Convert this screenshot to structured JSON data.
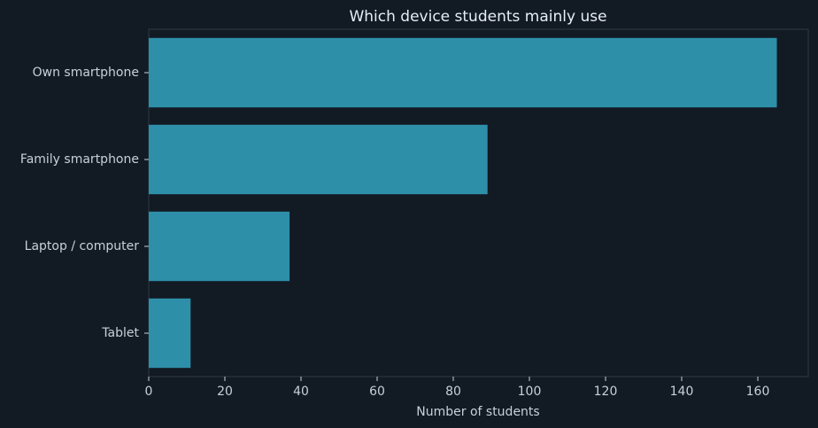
{
  "chart_data": {
    "type": "barh",
    "title": "Which device students mainly use",
    "x_label": "Number of students",
    "categories": [
      "Own smartphone",
      "Family smartphone",
      "Laptop / computer",
      "Tablet"
    ],
    "values": [
      165,
      89,
      37,
      11
    ],
    "color": "#2e8fa9",
    "xlim": [
      0,
      173.25
    ],
    "xticks": [
      0,
      20,
      40,
      60,
      80,
      100,
      120,
      140,
      160
    ]
  }
}
